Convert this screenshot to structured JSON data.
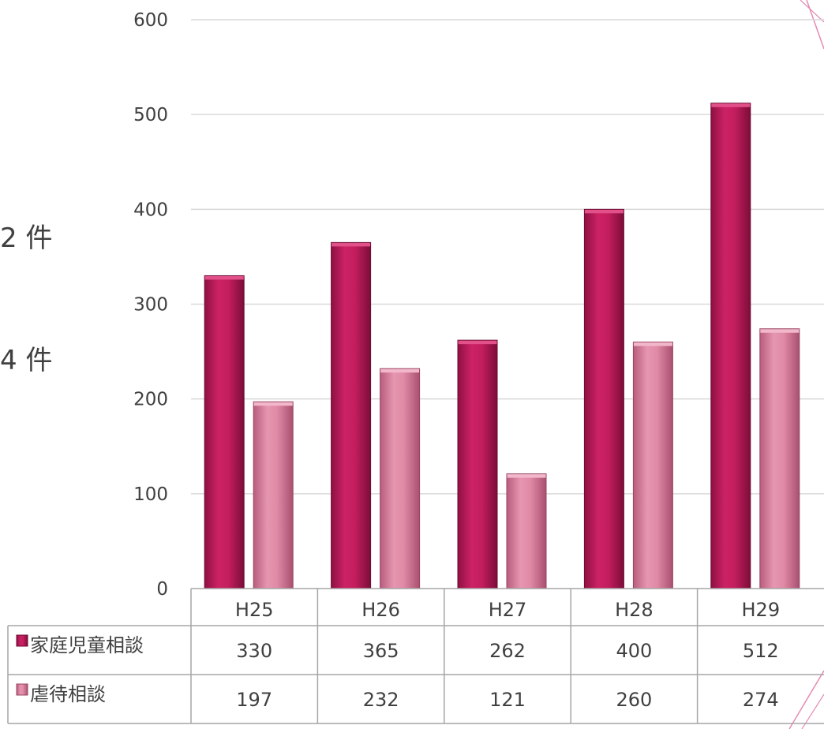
{
  "side_text": [
    "2 件",
    "4 件"
  ],
  "colors": {
    "series_1": "#c41e5e",
    "series_2": "#e08aa6",
    "grid": "#d9d9d9",
    "decoration": "#e58ab4"
  },
  "chart_data": {
    "type": "bar",
    "categories": [
      "H25",
      "H26",
      "H27",
      "H28",
      "H29"
    ],
    "series": [
      {
        "name": "家庭児童相談",
        "values": [
          330,
          365,
          262,
          400,
          512
        ]
      },
      {
        "name": "虐待相談",
        "values": [
          197,
          232,
          121,
          260,
          274
        ]
      }
    ],
    "ylim": [
      0,
      600
    ],
    "yticks": [
      0,
      100,
      200,
      300,
      400,
      500,
      600
    ],
    "grid": true,
    "data_table": true,
    "legend_placement": "data-table-left"
  }
}
